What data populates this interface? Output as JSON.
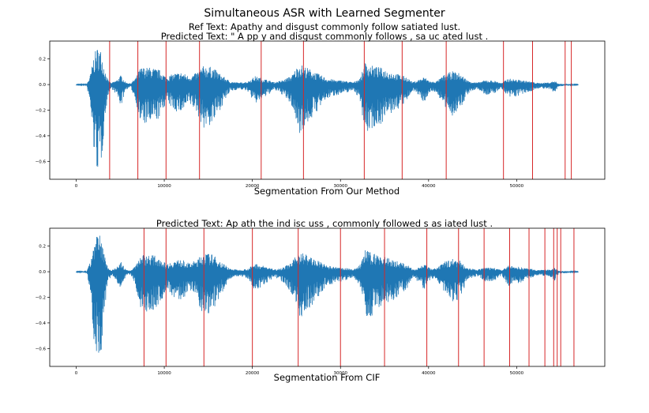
{
  "figure": {
    "suptitle": "Simultaneous ASR with Learned Segmenter"
  },
  "chart_data": [
    {
      "type": "line",
      "title_lines": [
        "Ref Text:  Apathy and disgust commonly follow satiated lust.",
        "Predicted Text:  \" A pp y  and  disgust  commonly  follows ,  sa uc ated  lust ."
      ],
      "xlabel": "Segmentation From Our Method",
      "ylabel": "",
      "xlim": [
        -3000,
        60000
      ],
      "ylim": [
        -0.74,
        0.34
      ],
      "xticks": [
        0,
        10000,
        20000,
        30000,
        40000,
        50000
      ],
      "yticks": [
        -0.6,
        -0.4,
        -0.2,
        0.0,
        0.2
      ],
      "ytick_labels": [
        "−0.6",
        "−0.4",
        "−0.2",
        "0.0",
        "0.2"
      ],
      "series": [
        {
          "color": "#1f77b4",
          "x_range": [
            0,
            57000
          ],
          "y_min": -0.7,
          "y_max": 0.3
        }
      ],
      "segment_boundaries": [
        3800,
        7000,
        10200,
        14000,
        21000,
        25800,
        32700,
        37000,
        42000,
        48500,
        51800,
        55500,
        56200
      ],
      "boundary_color": "#d62728"
    },
    {
      "type": "line",
      "title_lines": [
        "Predicted Text:  Ap ath  the  ind isc uss ,  commonly  followed  s as iated  lust ."
      ],
      "xlabel": "Segmentation From CIF",
      "ylabel": "",
      "xlim": [
        -3000,
        60000
      ],
      "ylim": [
        -0.74,
        0.34
      ],
      "xticks": [
        0,
        10000,
        20000,
        30000,
        40000,
        50000
      ],
      "yticks": [
        -0.6,
        -0.4,
        -0.2,
        0.0,
        0.2
      ],
      "ytick_labels": [
        "−0.6",
        "−0.4",
        "−0.2",
        "0.0",
        "0.2"
      ],
      "series": [
        {
          "color": "#1f77b4",
          "x_range": [
            0,
            57000
          ],
          "y_min": -0.7,
          "y_max": 0.3
        }
      ],
      "segment_boundaries": [
        7700,
        10200,
        14500,
        20000,
        25200,
        30000,
        35000,
        39800,
        43400,
        46300,
        49200,
        51400,
        53200,
        54200,
        54600,
        55000,
        56500
      ],
      "boundary_color": "#d62728"
    }
  ]
}
